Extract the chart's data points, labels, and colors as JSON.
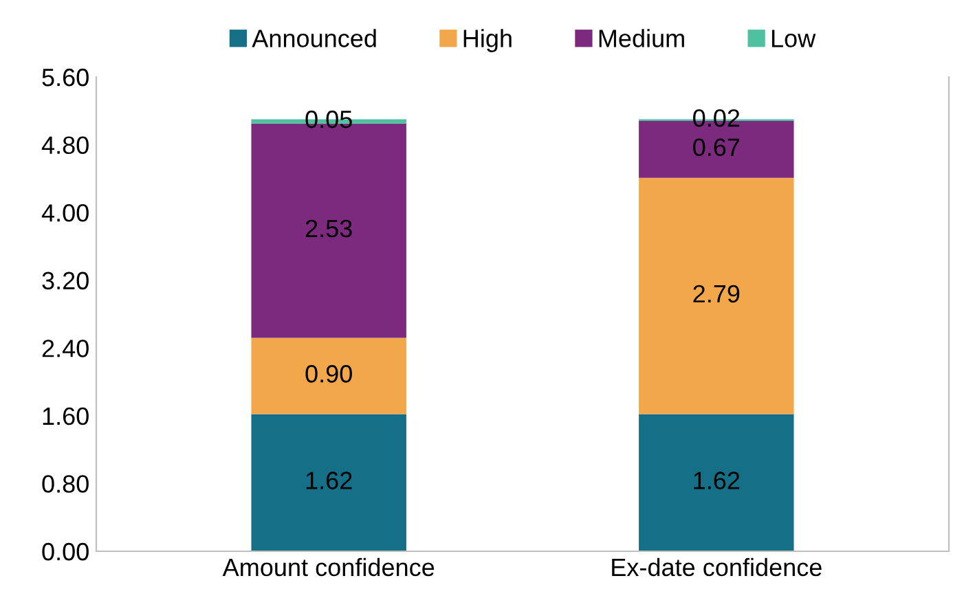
{
  "chart_data": {
    "type": "bar",
    "stacked": true,
    "categories": [
      "Amount confidence",
      "Ex-date confidence"
    ],
    "series": [
      {
        "name": "Announced",
        "color": "#156f87",
        "values": [
          1.62,
          1.62
        ],
        "value_labels": [
          "1.62",
          "1.62"
        ]
      },
      {
        "name": "High",
        "color": "#f2a84a",
        "values": [
          0.9,
          2.79
        ],
        "value_labels": [
          "0.90",
          "2.79"
        ]
      },
      {
        "name": "Medium",
        "color": "#7b2a7e",
        "values": [
          2.53,
          0.67
        ],
        "value_labels": [
          "2.53",
          "0.67"
        ]
      },
      {
        "name": "Low",
        "color": "#4fc1a0",
        "values": [
          0.05,
          0.02
        ],
        "value_labels": [
          "0.05",
          "0.02"
        ]
      }
    ],
    "ylim": [
      0,
      5.6
    ],
    "yticks": [
      {
        "value": 0,
        "label": "0.00"
      },
      {
        "value": 0.8,
        "label": "0.80"
      },
      {
        "value": 1.6,
        "label": "1.60"
      },
      {
        "value": 2.4,
        "label": "2.40"
      },
      {
        "value": 3.2,
        "label": "3.20"
      },
      {
        "value": 4.0,
        "label": "4.00"
      },
      {
        "value": 4.8,
        "label": "4.80"
      },
      {
        "value": 5.6,
        "label": "5.60"
      }
    ],
    "grid": false,
    "legend": "top"
  }
}
